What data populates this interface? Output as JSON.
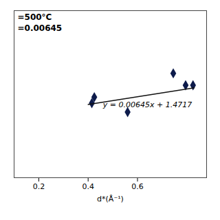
{
  "chart_data": {
    "type": "scatter",
    "x_label": "d*(Å⁻¹)",
    "series": [
      {
        "type": "scatter",
        "marker": "diamond",
        "color": "#0d1b4b",
        "x": [
          0.415,
          0.425,
          0.56,
          0.745,
          0.795,
          0.825
        ],
        "values": [
          1.4745,
          1.4755,
          1.473,
          1.4795,
          1.4775,
          1.4775
        ]
      },
      {
        "type": "line",
        "color": "#111111",
        "x": [
          0.4,
          0.83
        ],
        "values": [
          1.47428,
          1.4770535
        ]
      }
    ],
    "annotations": [
      {
        "text": "y = 0.00645x + 1.4717",
        "x": 0.46,
        "y": 1.4738
      },
      {
        "text": "=500°C"
      },
      {
        "text": "=0.00645"
      }
    ],
    "xlim": [
      0.1,
      0.88
    ],
    "xticks": [
      0.2,
      0.4,
      0.6
    ],
    "ylim": [
      1.462,
      1.49
    ],
    "tick_labels": "x",
    "grid": false
  }
}
